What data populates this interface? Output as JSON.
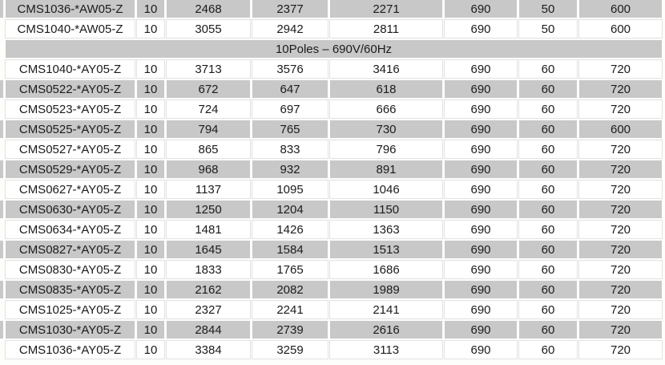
{
  "colors": {
    "row_shade": "#c8c8c8",
    "hairline": "#e2e2e2",
    "text": "#1b1b1b",
    "background": "#fdfdfc"
  },
  "table": {
    "section_header_label": "10Poles – 690V/60Hz",
    "rows": [
      {
        "shaded": true,
        "cells": [
          "CMS1036-*AW05-Z",
          "10",
          "2468",
          "2377",
          "2271",
          "690",
          "50",
          "600"
        ]
      },
      {
        "shaded": false,
        "cells": [
          "CMS1040-*AW05-Z",
          "10",
          "3055",
          "2942",
          "2811",
          "690",
          "50",
          "600"
        ]
      },
      {
        "section": true,
        "shaded": true,
        "label": "10Poles – 690V/60Hz"
      },
      {
        "shaded": false,
        "cells": [
          "CMS1040-*AY05-Z",
          "10",
          "3713",
          "3576",
          "3416",
          "690",
          "60",
          "720"
        ]
      },
      {
        "shaded": true,
        "cells": [
          "CMS0522-*AY05-Z",
          "10",
          "672",
          "647",
          "618",
          "690",
          "60",
          "720"
        ]
      },
      {
        "shaded": false,
        "cells": [
          "CMS0523-*AY05-Z",
          "10",
          "724",
          "697",
          "666",
          "690",
          "60",
          "720"
        ]
      },
      {
        "shaded": true,
        "cells": [
          "CMS0525-*AY05-Z",
          "10",
          "794",
          "765",
          "730",
          "690",
          "60",
          "600"
        ]
      },
      {
        "shaded": false,
        "cells": [
          "CMS0527-*AY05-Z",
          "10",
          "865",
          "833",
          "796",
          "690",
          "60",
          "720"
        ]
      },
      {
        "shaded": true,
        "cells": [
          "CMS0529-*AY05-Z",
          "10",
          "968",
          "932",
          "891",
          "690",
          "60",
          "720"
        ]
      },
      {
        "shaded": false,
        "cells": [
          "CMS0627-*AY05-Z",
          "10",
          "1137",
          "1095",
          "1046",
          "690",
          "60",
          "720"
        ]
      },
      {
        "shaded": true,
        "cells": [
          "CMS0630-*AY05-Z",
          "10",
          "1250",
          "1204",
          "1150",
          "690",
          "60",
          "720"
        ]
      },
      {
        "shaded": false,
        "cells": [
          "CMS0634-*AY05-Z",
          "10",
          "1481",
          "1426",
          "1363",
          "690",
          "60",
          "720"
        ]
      },
      {
        "shaded": true,
        "cells": [
          "CMS0827-*AY05-Z",
          "10",
          "1645",
          "1584",
          "1513",
          "690",
          "60",
          "720"
        ]
      },
      {
        "shaded": false,
        "cells": [
          "CMS0830-*AY05-Z",
          "10",
          "1833",
          "1765",
          "1686",
          "690",
          "60",
          "720"
        ]
      },
      {
        "shaded": true,
        "cells": [
          "CMS0835-*AY05-Z",
          "10",
          "2162",
          "2082",
          "1989",
          "690",
          "60",
          "720"
        ]
      },
      {
        "shaded": false,
        "cells": [
          "CMS1025-*AY05-Z",
          "10",
          "2327",
          "2241",
          "2141",
          "690",
          "60",
          "720"
        ]
      },
      {
        "shaded": true,
        "cells": [
          "CMS1030-*AY05-Z",
          "10",
          "2844",
          "2739",
          "2616",
          "690",
          "60",
          "720"
        ]
      },
      {
        "shaded": false,
        "cells": [
          "CMS1036-*AY05-Z",
          "10",
          "3384",
          "3259",
          "3113",
          "690",
          "60",
          "720"
        ]
      }
    ]
  }
}
